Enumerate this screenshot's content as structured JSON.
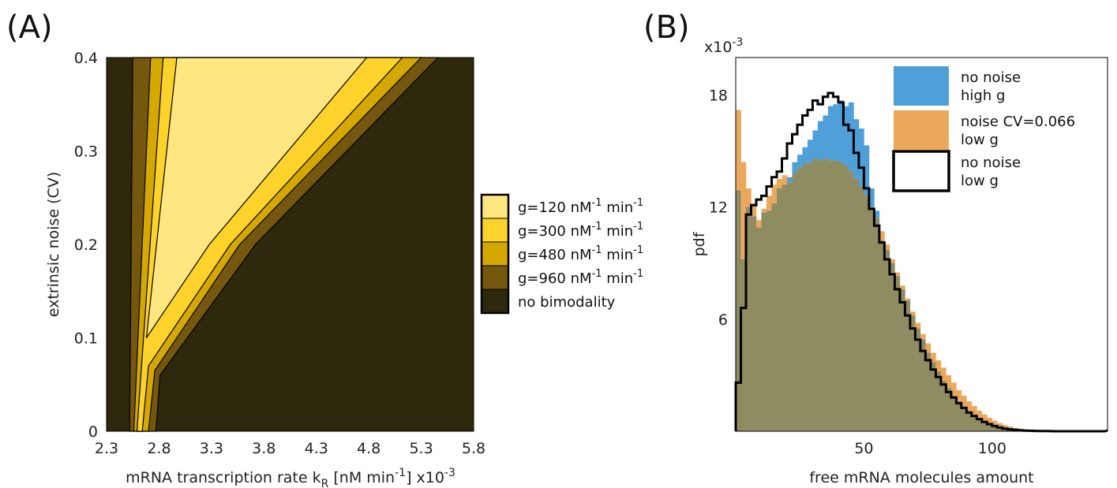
{
  "panel_labels": {
    "a": "(A)",
    "b": "(B)"
  },
  "colors": {
    "g120": "#ffe680",
    "g300": "#fdd22a",
    "g480": "#d4a800",
    "g960": "#75580d",
    "none": "#2e280c",
    "blue": "#4f9fd8",
    "orange": "#eba85c",
    "overlap": "#8f8c62"
  },
  "chart_data": [
    {
      "type": "area",
      "title": "",
      "xlabel": {
        "main": "mRNA transcription rate k",
        "sub": "R",
        "unit": " [nM min",
        "sup": "-1",
        "close": "]",
        "exp_base": "x10",
        "exp_sup": "-3"
      },
      "ylabel": "extrinsic noise (CV)",
      "xlim": [
        2.3,
        5.8
      ],
      "ylim": [
        0,
        0.4
      ],
      "xticks": [
        "2.3",
        "2.8",
        "3.3",
        "3.8",
        "4.3",
        "4.8",
        "5.3",
        "5.8"
      ],
      "yticks": [
        "0",
        "0.1",
        "0.2",
        "0.3",
        "0.4"
      ],
      "legend_position": "outside-right",
      "series": [
        {
          "key": "g960",
          "label": {
            "pre": "g=960 nM",
            "sup": "-1",
            "post": " min",
            "sup2": "-1"
          },
          "polygon": [
            [
              2.52,
              0
            ],
            [
              2.77,
              0
            ],
            [
              2.81,
              0.06
            ],
            [
              3.72,
              0.2
            ],
            [
              5.46,
              0.4
            ],
            [
              2.55,
              0.4
            ]
          ]
        },
        {
          "key": "g480",
          "label": {
            "pre": "g=480 nM",
            "sup": "-1",
            "post": " min",
            "sup2": "-1"
          },
          "polygon": [
            [
              2.56,
              0
            ],
            [
              2.7,
              0
            ],
            [
              2.76,
              0.065
            ],
            [
              3.57,
              0.2
            ],
            [
              5.3,
              0.4
            ],
            [
              2.72,
              0.4
            ]
          ]
        },
        {
          "key": "g300",
          "label": {
            "pre": "g=300 nM",
            "sup": "-1",
            "post": " min",
            "sup2": "-1"
          },
          "polygon": [
            [
              2.59,
              0
            ],
            [
              2.64,
              0
            ],
            [
              2.7,
              0.07
            ],
            [
              3.48,
              0.2
            ],
            [
              5.12,
              0.4
            ],
            [
              2.84,
              0.4
            ]
          ]
        },
        {
          "key": "g120",
          "label": {
            "pre": "g=120 nM",
            "sup": "-1",
            "post": " min",
            "sup2": "-1"
          },
          "polygon": [
            [
              2.68,
              0.1
            ],
            [
              3.28,
              0.2
            ],
            [
              4.78,
              0.4
            ],
            [
              2.97,
              0.4
            ]
          ]
        }
      ],
      "background_label": "no bimodality"
    },
    {
      "type": "bar",
      "title": "",
      "xlabel": "free mRNA molecules amount",
      "ylabel": "pdf",
      "y_multiplier": {
        "base": "x10",
        "sup": "-3"
      },
      "xlim": [
        0,
        145
      ],
      "ylim": [
        0,
        20
      ],
      "xticks": [
        {
          "v": 50,
          "t": "50"
        },
        {
          "v": 100,
          "t": "100"
        }
      ],
      "yticks": [
        {
          "v": 6,
          "t": "6"
        },
        {
          "v": 12,
          "t": "12"
        },
        {
          "v": 18,
          "t": "18"
        }
      ],
      "bin_width": 2,
      "legend_position": "top-right",
      "series": [
        {
          "name_lines": [
            "no noise",
            "high g"
          ],
          "key": "blue",
          "values": [
            12.9,
            9.2,
            12.0,
            11.5,
            10.9,
            11.7,
            11.8,
            12.2,
            13.0,
            13.2,
            13.6,
            14.4,
            14.8,
            15.2,
            15.6,
            16.1,
            16.6,
            16.9,
            17.4,
            17.5,
            17.7,
            17.4,
            17.6,
            16.7,
            16.2,
            15.3,
            13.0,
            11.8,
            10.2,
            9.7,
            9.0,
            8.3,
            7.6,
            7.0,
            6.2,
            5.5,
            4.9,
            4.2,
            3.7,
            3.2,
            2.7,
            2.3,
            1.9,
            1.6,
            1.3,
            1.05,
            0.85,
            0.65,
            0.5,
            0.38,
            0.28,
            0.2,
            0.15,
            0.11,
            0.08,
            0.06,
            0.04,
            0.03,
            0.02,
            0.015,
            0.01,
            0.01,
            0.0,
            0.0,
            0.0,
            0.0,
            0.0,
            0.0,
            0.0,
            0.0,
            0.0,
            0.0
          ]
        },
        {
          "name_lines": [
            "noise CV=0.066",
            "low g"
          ],
          "key": "orange",
          "values": [
            17.2,
            14.4,
            13.0,
            12.2,
            11.3,
            11.9,
            12.6,
            13.2,
            13.5,
            13.7,
            13.3,
            13.8,
            14.1,
            14.3,
            14.4,
            14.6,
            14.5,
            14.6,
            14.5,
            14.5,
            14.4,
            14.2,
            13.9,
            13.5,
            13.1,
            12.6,
            12.0,
            11.4,
            10.7,
            10.0,
            9.2,
            8.5,
            7.8,
            7.1,
            6.4,
            5.8,
            5.2,
            4.7,
            4.2,
            3.8,
            3.4,
            3.0,
            2.6,
            2.2,
            1.9,
            1.6,
            1.35,
            1.1,
            0.9,
            0.72,
            0.56,
            0.43,
            0.33,
            0.25,
            0.18,
            0.13,
            0.1,
            0.07,
            0.05,
            0.035,
            0.025,
            0.02,
            0.015,
            0.01,
            0.01,
            0.0,
            0.0,
            0.0,
            0.0,
            0.0,
            0.0,
            0.0
          ]
        },
        {
          "name_lines": [
            "no noise",
            "low g"
          ],
          "key": "black",
          "values": [
            2.6,
            6.6,
            11.6,
            12.1,
            12.4,
            12.6,
            13.1,
            13.6,
            13.9,
            14.6,
            15.4,
            15.9,
            16.4,
            16.9,
            17.2,
            17.7,
            17.5,
            17.9,
            18.1,
            17.9,
            17.6,
            16.4,
            16.1,
            14.9,
            14.1,
            13.0,
            11.9,
            11.0,
            10.1,
            9.2,
            8.4,
            7.6,
            6.9,
            6.2,
            5.5,
            4.9,
            4.3,
            3.8,
            3.3,
            2.9,
            2.5,
            2.1,
            1.8,
            1.5,
            1.25,
            1.0,
            0.82,
            0.65,
            0.5,
            0.38,
            0.28,
            0.2,
            0.14,
            0.1,
            0.07,
            0.05,
            0.035,
            0.025,
            0.018,
            0.012,
            0.008,
            0.005,
            0.0,
            0.0,
            0.0,
            0.0,
            0.0,
            0.0,
            0.0,
            0.0,
            0.0,
            0.0
          ]
        }
      ]
    }
  ]
}
